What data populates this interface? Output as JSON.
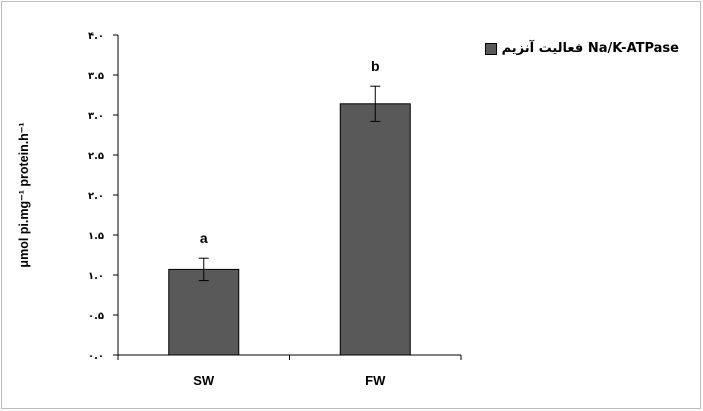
{
  "chart_data": {
    "type": "bar",
    "categories": [
      "SW",
      "FW"
    ],
    "series": [
      {
        "name": "فعالیت آنزیم Na/K-ATPase",
        "values": [
          1.07,
          3.14
        ],
        "errors": [
          0.14,
          0.22
        ],
        "labels": [
          "a",
          "b"
        ]
      }
    ],
    "ylabel": "μmol pi.mg⁻¹ protein.h⁻¹",
    "ylim": [
      0,
      4
    ],
    "yticks": [
      0,
      0.5,
      1,
      1.5,
      2,
      2.5,
      3,
      3.5,
      4
    ],
    "ytick_labels": [
      "۰.۰",
      "۰.۵",
      "۱.۰",
      "۱.۵",
      "۲.۰",
      "۲.۵",
      "۳.۰",
      "۳.۵",
      "۴.۰"
    ],
    "grid": false,
    "legend_position": "top-right",
    "colors": {
      "bar": "#595959",
      "axis": "#000000"
    }
  }
}
